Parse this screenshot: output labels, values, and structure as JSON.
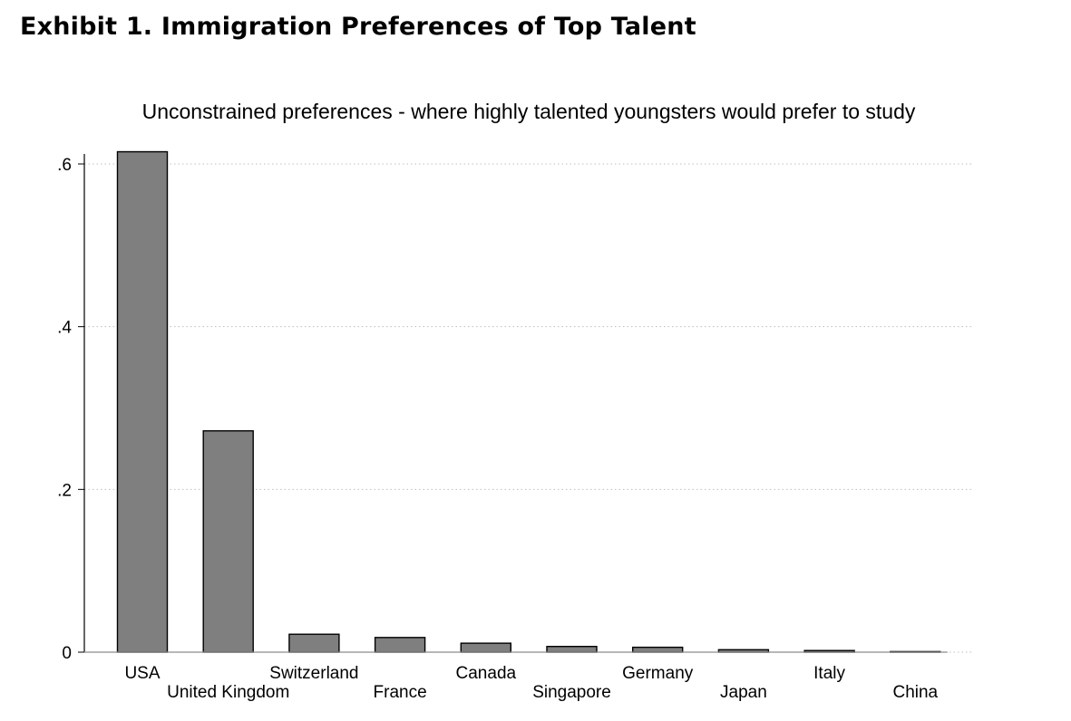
{
  "exhibit_title": "Exhibit 1. Immigration Preferences of Top Talent",
  "colors": {
    "bar_fill": "#7f7f7f",
    "bar_stroke": "#000000",
    "grid": "#bfbfbf",
    "axis": "#000000"
  },
  "chart_data": {
    "type": "bar",
    "title": "Unconstrained preferences - where highly talented youngsters would prefer to study",
    "xlabel": "",
    "ylabel": "",
    "ylim": [
      0,
      0.6
    ],
    "yticks": [
      0,
      0.2,
      0.4,
      0.6
    ],
    "ytick_labels": [
      "0",
      ".2",
      ".4",
      ".6"
    ],
    "grid": true,
    "categories": [
      "USA",
      "United Kingdom",
      "Switzerland",
      "France",
      "Canada",
      "Singapore",
      "Germany",
      "Japan",
      "Italy",
      "China"
    ],
    "values": [
      0.615,
      0.272,
      0.022,
      0.018,
      0.011,
      0.007,
      0.006,
      0.003,
      0.002,
      0.0
    ]
  }
}
